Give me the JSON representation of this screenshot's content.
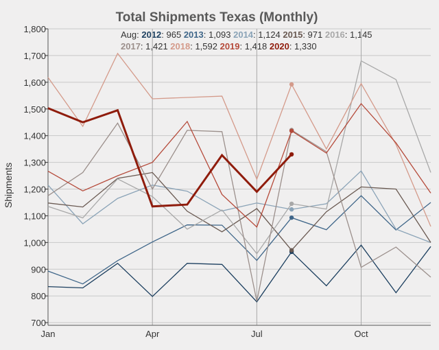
{
  "chart_data": {
    "type": "line",
    "title": "Total Shipments Texas (Monthly)",
    "xlabel": "",
    "ylabel": "Shipments",
    "x_ticks": [
      "Jan",
      "Apr",
      "Jul",
      "Oct"
    ],
    "x_tick_months": [
      1,
      4,
      7,
      10
    ],
    "months": [
      1,
      2,
      3,
      4,
      5,
      6,
      7,
      8,
      9,
      10,
      11,
      12
    ],
    "ylim": [
      690,
      1800
    ],
    "y_ticks": [
      700,
      800,
      900,
      1000,
      1100,
      1200,
      1300,
      1400,
      1500,
      1600,
      1700,
      1800
    ],
    "y_tick_labels": [
      "700",
      "800",
      "900",
      "1,000",
      "1,100",
      "1,200",
      "1,300",
      "1,400",
      "1,500",
      "1,600",
      "1,700",
      "1,800"
    ],
    "legend": {
      "prefix": "Aug:",
      "rows": [
        [
          {
            "name": "2012",
            "value": "965"
          },
          {
            "name": "2013",
            "value": "1,093"
          },
          {
            "name": "2014",
            "value": "1,124"
          },
          {
            "name": "2015",
            "value": "971"
          },
          {
            "name": "2016",
            "value": "1,145"
          }
        ],
        [
          {
            "name": "2017",
            "value": "1,421"
          },
          {
            "name": "2018",
            "value": "1,592"
          },
          {
            "name": "2019",
            "value": "1,418"
          },
          {
            "name": "2020",
            "value": "1,330"
          }
        ]
      ]
    },
    "series": [
      {
        "name": "2012",
        "color": "#1c3f5f",
        "width": 1.3,
        "values": [
          835,
          830,
          922,
          798,
          922,
          918,
          778,
          965,
          838,
          990,
          812,
          985
        ]
      },
      {
        "name": "2013",
        "color": "#3f6689",
        "width": 1.3,
        "values": [
          893,
          845,
          932,
          1002,
          1066,
          1065,
          933,
          1093,
          1048,
          1175,
          1047,
          1150
        ]
      },
      {
        "name": "2014",
        "color": "#8aa3b7",
        "width": 1.3,
        "values": [
          1215,
          1070,
          1165,
          1215,
          1192,
          1118,
          1148,
          1124,
          1145,
          1268,
          1050,
          1000
        ]
      },
      {
        "name": "2015",
        "color": "#6a5a52",
        "width": 1.3,
        "values": [
          1148,
          1133,
          1240,
          1262,
          1117,
          1040,
          1127,
          971,
          1115,
          1208,
          1200,
          1000
        ]
      },
      {
        "name": "2016",
        "color": "#a8a8a8",
        "width": 1.3,
        "values": [
          1135,
          1092,
          1238,
          1172,
          1050,
          1122,
          958,
          1145,
          1125,
          1680,
          1610,
          1262
        ]
      },
      {
        "name": "2017",
        "color": "#9b8f8b",
        "width": 1.3,
        "values": [
          1175,
          1262,
          1447,
          1200,
          1420,
          1415,
          780,
          1421,
          1340,
          907,
          983,
          870
        ]
      },
      {
        "name": "2018",
        "color": "#d49a8a",
        "width": 1.3,
        "values": [
          1618,
          1435,
          1708,
          1538,
          1543,
          1548,
          1237,
          1592,
          1350,
          1595,
          1367,
          1060
        ]
      },
      {
        "name": "2019",
        "color": "#b54a3a",
        "width": 1.3,
        "values": [
          1267,
          1193,
          1250,
          1300,
          1453,
          1180,
          1058,
          1418,
          1335,
          1520,
          1373,
          1185
        ]
      },
      {
        "name": "2020",
        "color": "#8f1c0c",
        "width": 3,
        "values": [
          1503,
          1450,
          1495,
          1135,
          1142,
          1327,
          1190,
          1330
        ]
      }
    ]
  }
}
